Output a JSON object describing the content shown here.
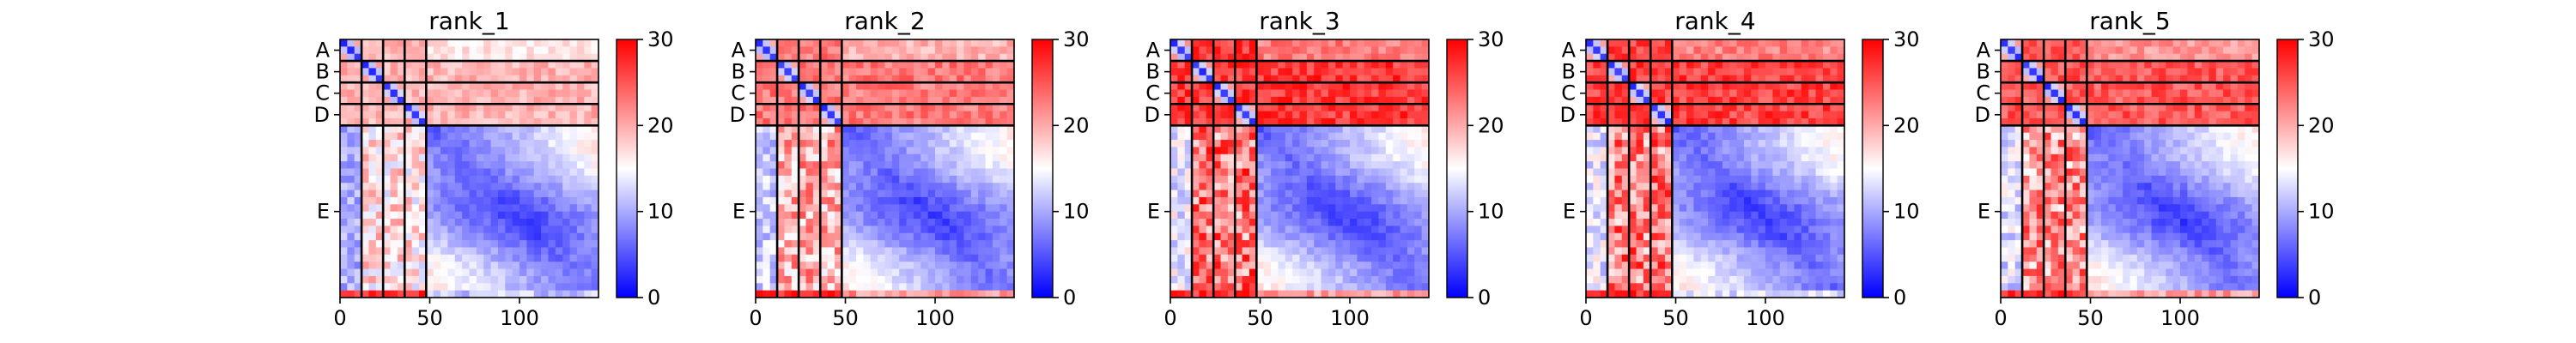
{
  "chart_data": [
    {
      "type": "heatmap",
      "title": "rank_1",
      "x_ticks": [
        0,
        50,
        100
      ],
      "chain_labels": [
        "A",
        "B",
        "C",
        "D",
        "E"
      ],
      "chain_boundaries": [
        0,
        12,
        24,
        36,
        48,
        144
      ],
      "colorbar": {
        "min": 0,
        "max": 30,
        "ticks": [
          0,
          10,
          20,
          30
        ]
      },
      "interchain_level": 0.72,
      "terminal_pae": 1
    },
    {
      "type": "heatmap",
      "title": "rank_2",
      "x_ticks": [
        0,
        50,
        100
      ],
      "chain_labels": [
        "A",
        "B",
        "C",
        "D",
        "E"
      ],
      "chain_boundaries": [
        0,
        12,
        24,
        36,
        48,
        144
      ],
      "colorbar": {
        "min": 0,
        "max": 30,
        "ticks": [
          0,
          10,
          20,
          30
        ]
      },
      "interchain_level": 0.85,
      "terminal_pae": 20
    },
    {
      "type": "heatmap",
      "title": "rank_3",
      "x_ticks": [
        0,
        50,
        100
      ],
      "chain_labels": [
        "A",
        "B",
        "C",
        "D",
        "E"
      ],
      "chain_boundaries": [
        0,
        12,
        24,
        36,
        48,
        144
      ],
      "colorbar": {
        "min": 0,
        "max": 30,
        "ticks": [
          0,
          10,
          20,
          30
        ]
      },
      "interchain_level": 0.99,
      "terminal_pae": 20
    },
    {
      "type": "heatmap",
      "title": "rank_4",
      "x_ticks": [
        0,
        50,
        100
      ],
      "chain_labels": [
        "A",
        "B",
        "C",
        "D",
        "E"
      ],
      "chain_boundaries": [
        0,
        12,
        24,
        36,
        48,
        144
      ],
      "colorbar": {
        "min": 0,
        "max": 30,
        "ticks": [
          0,
          10,
          20,
          30
        ]
      },
      "interchain_level": 0.97,
      "terminal_pae": 4
    },
    {
      "type": "heatmap",
      "title": "rank_5",
      "x_ticks": [
        0,
        50,
        100
      ],
      "chain_labels": [
        "A",
        "B",
        "C",
        "D",
        "E"
      ],
      "chain_boundaries": [
        0,
        12,
        24,
        36,
        48,
        144
      ],
      "colorbar": {
        "min": 0,
        "max": 30,
        "ticks": [
          0,
          10,
          20,
          30
        ]
      },
      "interchain_level": 0.92,
      "terminal_pae": 20
    }
  ],
  "colors": {
    "low": "#0000ff",
    "mid": "#ffffff",
    "high": "#ff0000"
  }
}
